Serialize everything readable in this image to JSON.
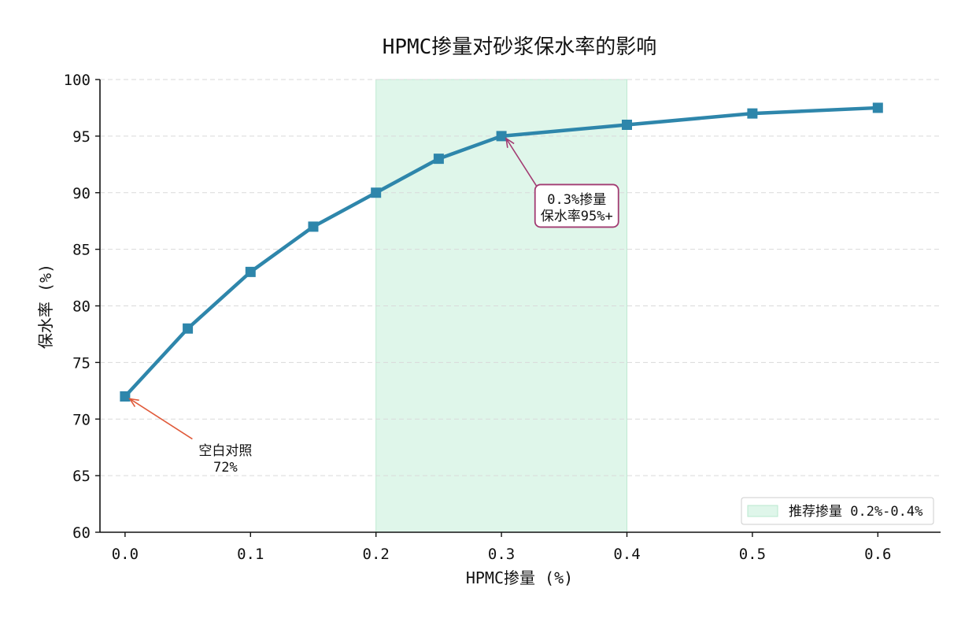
{
  "chart_data": {
    "type": "line",
    "title": "HPMC掺量对砂浆保水率的影响",
    "xlabel": "HPMC掺量 (%)",
    "ylabel": "保水率 (%)",
    "xlim": [
      -0.02,
      0.65
    ],
    "ylim": [
      60,
      100
    ],
    "x_ticks": [
      0.0,
      0.1,
      0.2,
      0.3,
      0.4,
      0.5,
      0.6
    ],
    "x_tick_labels": [
      "0.0",
      "0.1",
      "0.2",
      "0.3",
      "0.4",
      "0.5",
      "0.6"
    ],
    "y_ticks": [
      60,
      65,
      70,
      75,
      80,
      85,
      90,
      95,
      100
    ],
    "y_tick_labels": [
      "60",
      "65",
      "70",
      "75",
      "80",
      "85",
      "90",
      "95",
      "100"
    ],
    "grid": "horizontal dashed",
    "series": [
      {
        "x": [
          0.0,
          0.05,
          0.1,
          0.15,
          0.2,
          0.25,
          0.3,
          0.4,
          0.5,
          0.6
        ],
        "y": [
          72,
          78,
          83,
          87,
          90,
          93,
          95,
          96,
          97,
          97.5
        ],
        "color": "#2e86ab",
        "marker": "square"
      }
    ],
    "shaded_region": {
      "x_start": 0.2,
      "x_end": 0.4,
      "label": "推荐掺量 0.2%-0.4%",
      "color": "#dff6ea"
    },
    "legend_placement": "lower-right",
    "annotations": [
      {
        "lines": [
          "0.3%掺量",
          "保水率95%+"
        ],
        "point": [
          0.3,
          95
        ],
        "text_at": [
          0.36,
          88.7
        ],
        "color": "#a23b72",
        "boxed": true
      },
      {
        "lines": [
          "空白对照",
          "72%"
        ],
        "point": [
          0.0,
          72
        ],
        "text_at": [
          0.08,
          66.5
        ],
        "color": "#e05a3a",
        "boxed": false
      }
    ]
  }
}
